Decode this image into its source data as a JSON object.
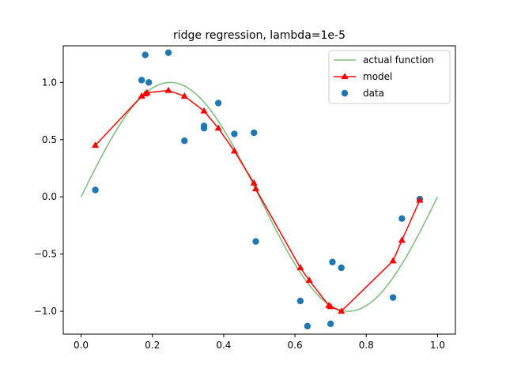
{
  "chart_data": {
    "type": "scatter",
    "title": "ridge regression, lambda=1e-5",
    "xlabel": "",
    "ylabel": "",
    "xlim": [
      -0.05,
      1.05
    ],
    "ylim": [
      -1.2,
      1.32
    ],
    "xticks": [
      0.0,
      0.2,
      0.4,
      0.6,
      0.8,
      1.0
    ],
    "xtick_labels": [
      "0.0",
      "0.2",
      "0.4",
      "0.6",
      "0.8",
      "1.0"
    ],
    "yticks": [
      -1.0,
      -0.5,
      0.0,
      0.5,
      1.0
    ],
    "ytick_labels": [
      "−1.0",
      "−0.5",
      "0.0",
      "0.5",
      "1.0"
    ],
    "grid": false,
    "legend_position": "top-right",
    "series": [
      {
        "name": "actual function",
        "kind": "line",
        "color": "#7fbf7f",
        "function": "sin(2*pi*x)",
        "x_range": [
          0.0,
          1.0
        ]
      },
      {
        "name": "model",
        "kind": "line-marker",
        "color": "#ff0000",
        "marker": "triangle",
        "x": [
          0.04,
          0.17,
          0.18,
          0.185,
          0.245,
          0.29,
          0.345,
          0.385,
          0.43,
          0.485,
          0.49,
          0.615,
          0.64,
          0.695,
          0.7,
          0.73,
          0.875,
          0.9,
          0.95
        ],
        "y": [
          0.45,
          0.88,
          0.9,
          0.91,
          0.93,
          0.88,
          0.75,
          0.6,
          0.4,
          0.12,
          0.07,
          -0.62,
          -0.73,
          -0.95,
          -0.96,
          -1.0,
          -0.56,
          -0.38,
          -0.03
        ]
      },
      {
        "name": "data",
        "kind": "scatter",
        "color": "#1f77b4",
        "x": [
          0.04,
          0.17,
          0.18,
          0.19,
          0.245,
          0.29,
          0.345,
          0.345,
          0.385,
          0.43,
          0.485,
          0.49,
          0.615,
          0.635,
          0.7,
          0.705,
          0.73,
          0.875,
          0.9,
          0.95
        ],
        "y": [
          0.06,
          1.02,
          1.24,
          1.0,
          1.26,
          0.49,
          0.6,
          0.62,
          0.82,
          0.55,
          0.56,
          -0.39,
          -0.91,
          -1.13,
          -1.11,
          -0.57,
          -0.62,
          -0.88,
          -0.19,
          -0.02
        ]
      }
    ]
  }
}
